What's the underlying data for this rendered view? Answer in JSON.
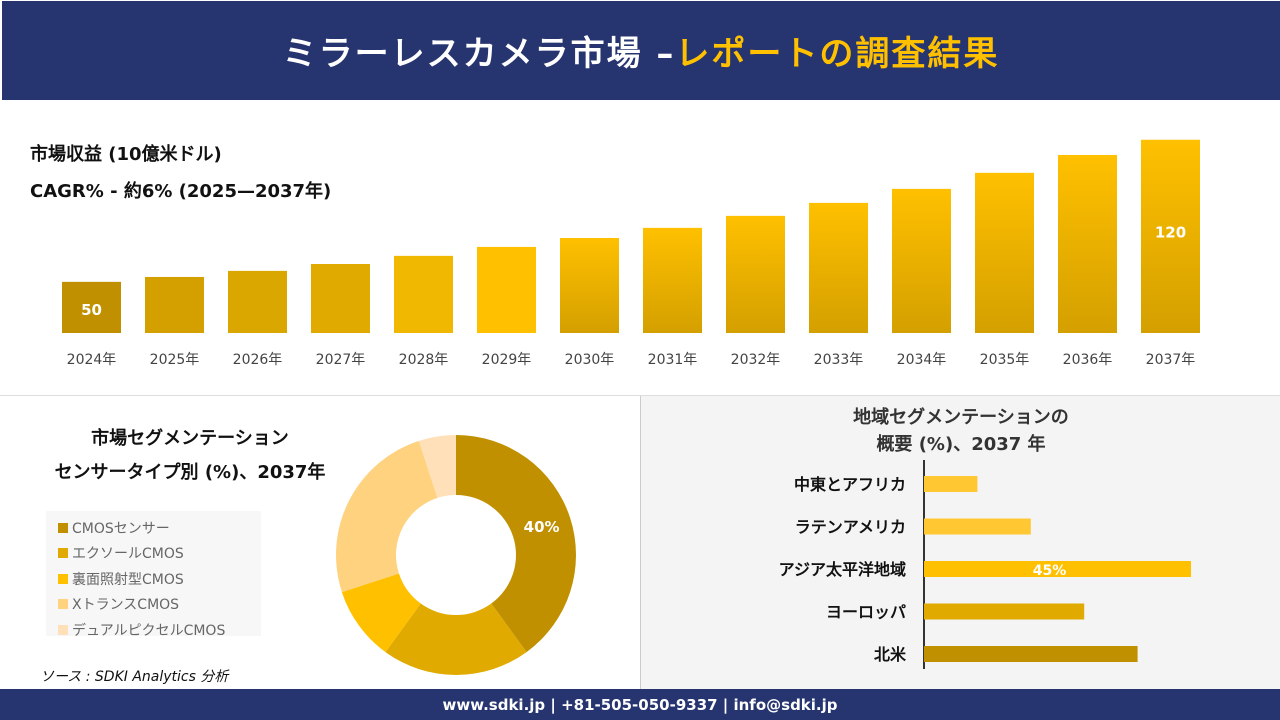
{
  "header": {
    "title_main": "ミラーレスカメラ市場 –",
    "title_accent": "レポートの調査結果"
  },
  "colors": {
    "navy": "#263470",
    "accent": "#FFC000"
  },
  "chart_data": [
    {
      "type": "bar",
      "title": "市場収益 (10億米ドル)",
      "subtitle": "CAGR% - 約6% (2025—2037年)",
      "categories": [
        "2024年",
        "2025年",
        "2026年",
        "2027年",
        "2028年",
        "2029年",
        "2030年",
        "2031年",
        "2032年",
        "2033年",
        "2034年",
        "2035年",
        "2036年",
        "2037年"
      ],
      "values": [
        50,
        52.4,
        55.4,
        58.8,
        62.8,
        67.2,
        71.6,
        76.6,
        82.5,
        88.9,
        95.8,
        103.7,
        112.5,
        120
      ],
      "data_labels": {
        "0": "50",
        "13": "120"
      },
      "colors": [
        "#C09000",
        "#D4A000",
        "#DAA600",
        "#E0AA00",
        "#F0B800",
        "#FFC000",
        "#F5B800",
        "#F5B800",
        "#F5B800",
        "#F5B800",
        "#F5B800",
        "#F5B800",
        "#F5B800",
        "#F5B800"
      ],
      "grid": false
    },
    {
      "type": "pie",
      "title_lines": [
        "市場セグメンテーション",
        "センサータイプ別 (%)、2037年"
      ],
      "categories": [
        "CMOSセンサー",
        "エクソールCMOS",
        "裏面照射型CMOS",
        "XトランスCMOS",
        "デュアルピクセルCMOS"
      ],
      "values": [
        40,
        20,
        10,
        25,
        5
      ],
      "colors": [
        "#C09000",
        "#E0AA00",
        "#FFC000",
        "#FFD280",
        "#FFE0B8"
      ],
      "data_labels": {
        "0": "40%"
      },
      "legend_position": "left"
    },
    {
      "type": "bar",
      "orientation": "horizontal",
      "title_lines": [
        "地域セグメンテーションの",
        "概要 (%)、2037 年"
      ],
      "categories": [
        "中東とアフリカ",
        "ラテンアメリカ",
        "アジア太平洋地域",
        "ヨーロッパ",
        "北米"
      ],
      "values": [
        9,
        18,
        45,
        27,
        36
      ],
      "colors": [
        "#FFC833",
        "#FFC833",
        "#FFC000",
        "#E0AA00",
        "#C09000"
      ],
      "data_labels": {
        "2": "45%"
      }
    }
  ],
  "source": "ソース : SDKI Analytics 分析",
  "footer": "www.sdki.jp | +81-505-050-9337 | info@sdki.jp"
}
